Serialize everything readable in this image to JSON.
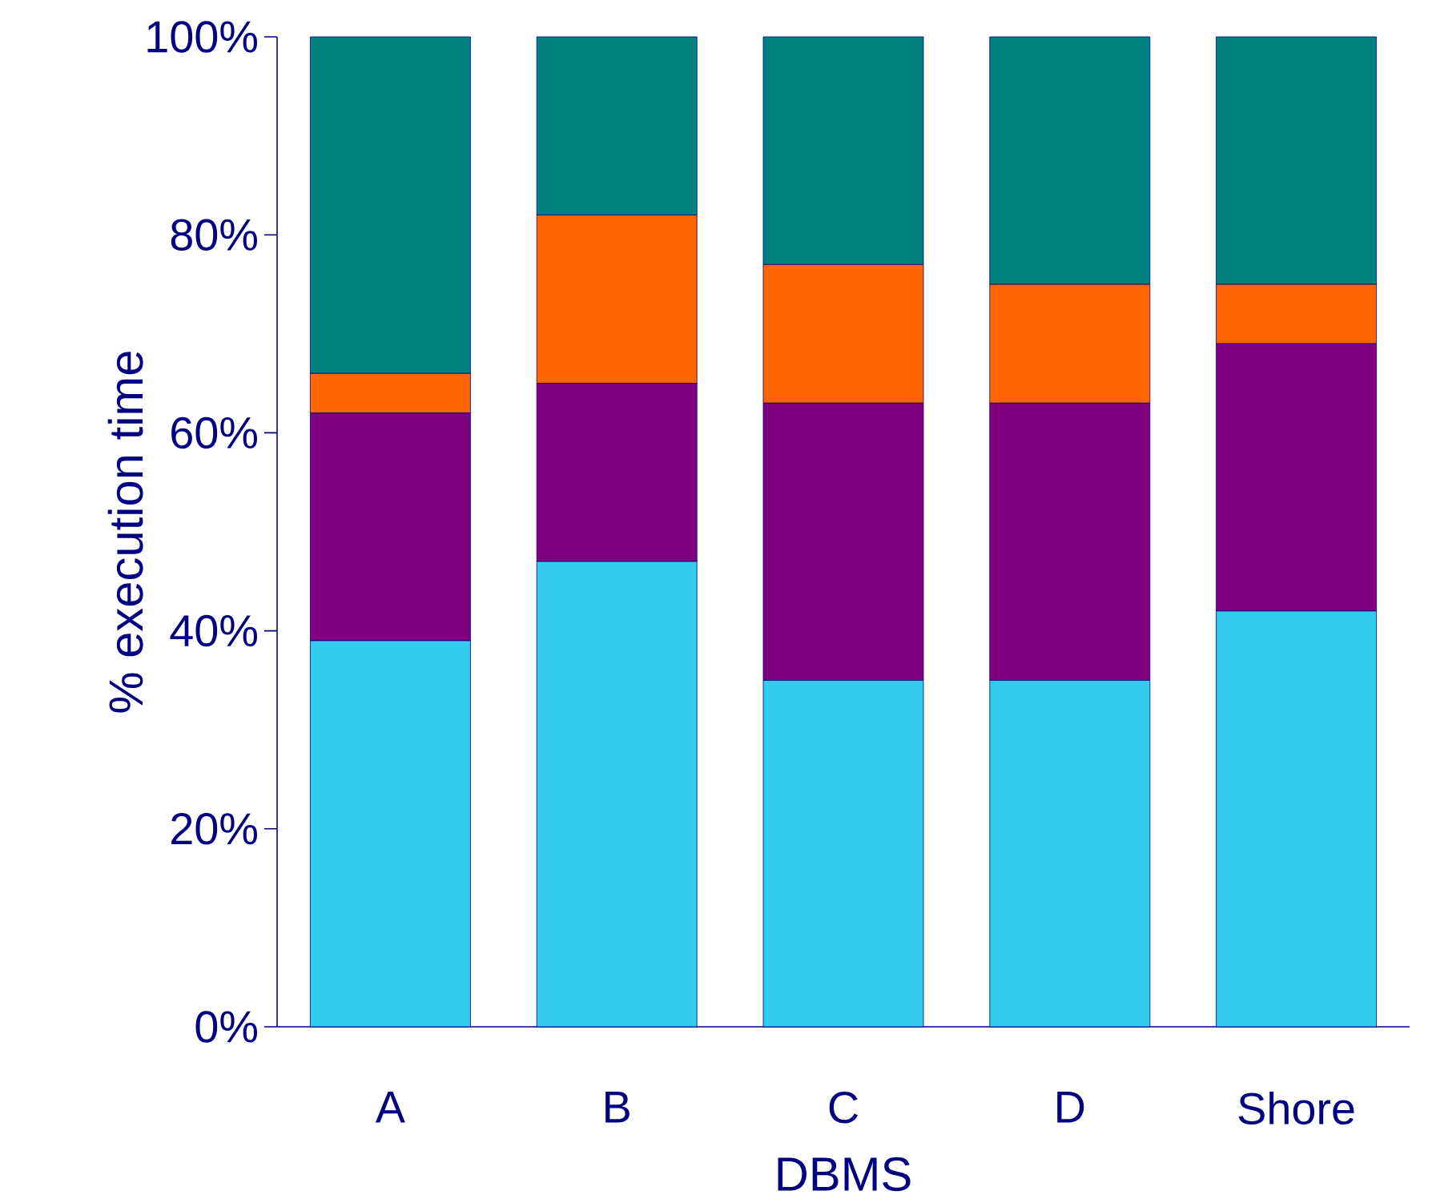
{
  "chart_data": {
    "type": "bar",
    "stacked": true,
    "xlabel": "DBMS",
    "ylabel": "% execution time",
    "categories": [
      "A",
      "B",
      "C",
      "D",
      "Shore"
    ],
    "series": [
      {
        "color": "#33ccee",
        "values": [
          39,
          47,
          35,
          35,
          42
        ]
      },
      {
        "color": "#800080",
        "values": [
          23,
          18,
          28,
          28,
          27
        ]
      },
      {
        "color": "#ff6600",
        "values": [
          4,
          17,
          14,
          12,
          6
        ]
      },
      {
        "color": "#008080",
        "values": [
          34,
          18,
          23,
          25,
          25
        ]
      }
    ],
    "ylim": [
      0,
      100
    ],
    "yticks": [
      {
        "value": 0,
        "label": "0%"
      },
      {
        "value": 20,
        "label": "20%"
      },
      {
        "value": 40,
        "label": "40%"
      },
      {
        "value": 60,
        "label": "60%"
      },
      {
        "value": 80,
        "label": "80%"
      },
      {
        "value": 100,
        "label": "100%"
      }
    ],
    "grid": false
  }
}
